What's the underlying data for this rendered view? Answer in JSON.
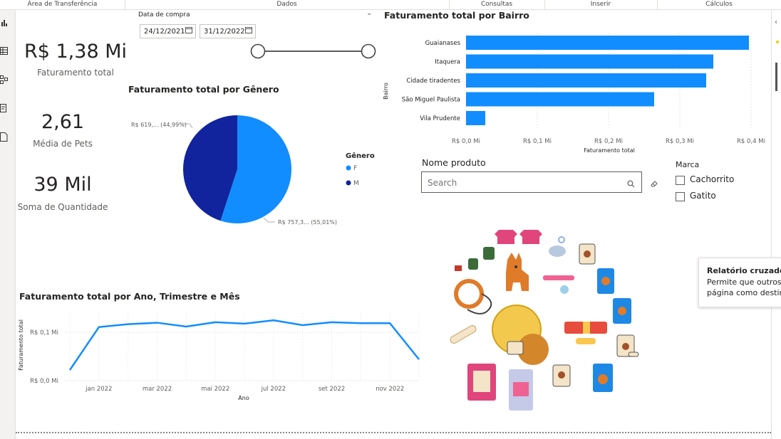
{
  "ribbon": {
    "groups": [
      "Área de Transferência",
      "Dados",
      "Consultas",
      "Inserir",
      "Cálculos"
    ]
  },
  "left_rail": {
    "icons": [
      "report-view-icon",
      "table-view-icon",
      "model-view-icon",
      "dax-query-icon",
      "tmdl-icon"
    ]
  },
  "kpis": [
    {
      "value": "R$ 1,38 Mi",
      "label": "Faturamento total"
    },
    {
      "value": "2,61",
      "label": "Média de Pets"
    },
    {
      "value": "39 Mil",
      "label": "Soma de Quantidade"
    }
  ],
  "date_slicer": {
    "title": "Data de compra",
    "start": "24/12/2021",
    "end": "31/12/2022",
    "start_fraction": 0,
    "end_fraction": 1
  },
  "pie": {
    "title": "Faturamento total por Gênero",
    "legend_title": "Gênero",
    "legend": [
      "F",
      "M"
    ],
    "label_m": "R$ 619,... (44,99%)",
    "label_f": "R$ 757,3... (55,01%)"
  },
  "bar": {
    "title": "Faturamento total por Bairro",
    "ylabel": "Bairro",
    "xlabel": "Faturamento total"
  },
  "line": {
    "title": "Faturamento total por Ano, Trimestre e Mês",
    "ylabel": "Faturamento total",
    "xlabel": "Ano"
  },
  "product_slicer": {
    "title": "Nome produto",
    "placeholder": "Search"
  },
  "brand_slicer": {
    "title": "Marca",
    "options": [
      "Cachorrito",
      "Gatito"
    ]
  },
  "tooltip": {
    "title": "Relatório cruzado",
    "line1": "Permite que outros",
    "line2": "página como destin"
  },
  "colors": {
    "accent": "#118DFF",
    "dark": "#12239E"
  },
  "chart_data": [
    {
      "type": "pie",
      "title": "Faturamento total por Gênero",
      "categories": [
        "F",
        "M"
      ],
      "values": [
        757.3,
        619
      ],
      "percent": [
        55.01,
        44.99
      ]
    },
    {
      "type": "bar",
      "title": "Faturamento total por Bairro",
      "categories": [
        "Guaianases",
        "Itaquera",
        "Cidade tiradentes",
        "São Miguel Paulista",
        "Vila Prudente"
      ],
      "values": [
        0.397,
        0.347,
        0.337,
        0.264,
        0.027
      ],
      "xlim": [
        0,
        0.4
      ],
      "ticks": [
        "R$ 0,0 Mi",
        "R$ 0,1 Mi",
        "R$ 0,2 Mi",
        "R$ 0,3 Mi",
        "R$ 0,4 Mi"
      ],
      "xlabel": "Faturamento total",
      "ylabel": "Bairro"
    },
    {
      "type": "line",
      "title": "Faturamento total por Ano, Trimestre e Mês",
      "x": [
        "dez 2021",
        "jan 2022",
        "fev 2022",
        "mar 2022",
        "abr 2022",
        "mai 2022",
        "jun 2022",
        "jul 2022",
        "ago 2022",
        "set 2022",
        "out 2022",
        "nov 2022",
        "dez 2022"
      ],
      "values": [
        0.022,
        0.111,
        0.117,
        0.12,
        0.112,
        0.121,
        0.118,
        0.125,
        0.115,
        0.121,
        0.119,
        0.119,
        0.044
      ],
      "ylim": [
        0,
        0.14
      ],
      "yticks": [
        "R$ 0,0 Mi",
        "R$ 0,1 Mi"
      ],
      "xticks": [
        "jan 2022",
        "mar 2022",
        "mai 2022",
        "jul 2022",
        "set 2022",
        "nov 2022"
      ],
      "xlabel": "Ano",
      "ylabel": "Faturamento total"
    }
  ]
}
